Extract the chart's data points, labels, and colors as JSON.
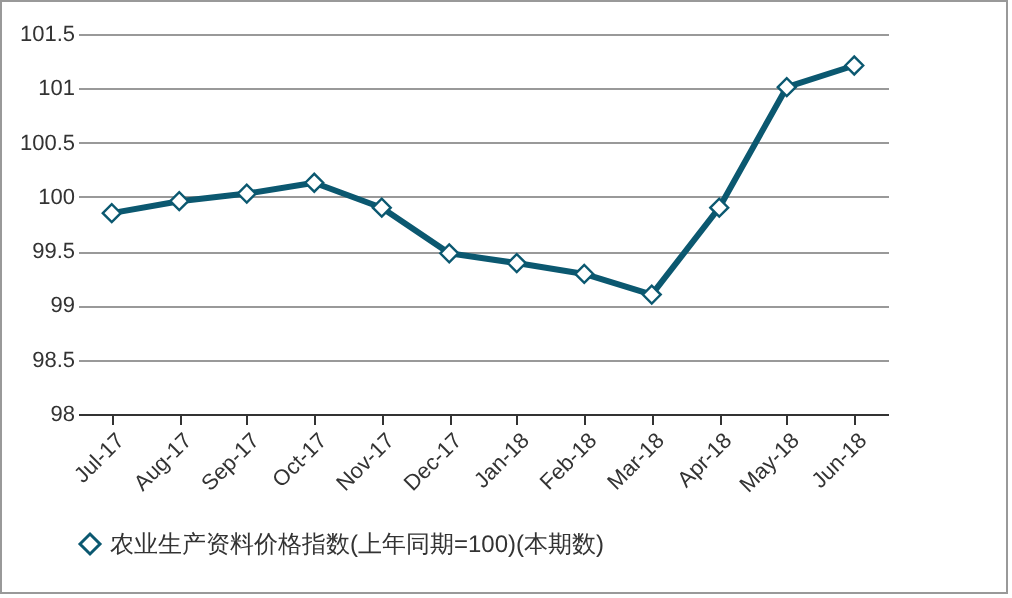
{
  "chart_data": {
    "type": "line",
    "categories": [
      "Jul-17",
      "Aug-17",
      "Sep-17",
      "Oct-17",
      "Nov-17",
      "Dec-17",
      "Jan-18",
      "Feb-18",
      "Mar-18",
      "Apr-18",
      "May-18",
      "Jun-18"
    ],
    "series": [
      {
        "name": "农业生产资料价格指数(上年同期=100)(本期数)",
        "color": "#0b5870",
        "values": [
          99.85,
          99.96,
          100.03,
          100.13,
          99.9,
          99.48,
          99.39,
          99.29,
          99.1,
          99.9,
          101.01,
          101.21
        ]
      }
    ],
    "ylim": [
      98,
      101.5
    ],
    "yticks": [
      98,
      98.5,
      99,
      99.5,
      100,
      100.5,
      101,
      101.5
    ],
    "grid": "y",
    "legend": "bottom",
    "marker": "diamond",
    "line_style": "solid"
  }
}
